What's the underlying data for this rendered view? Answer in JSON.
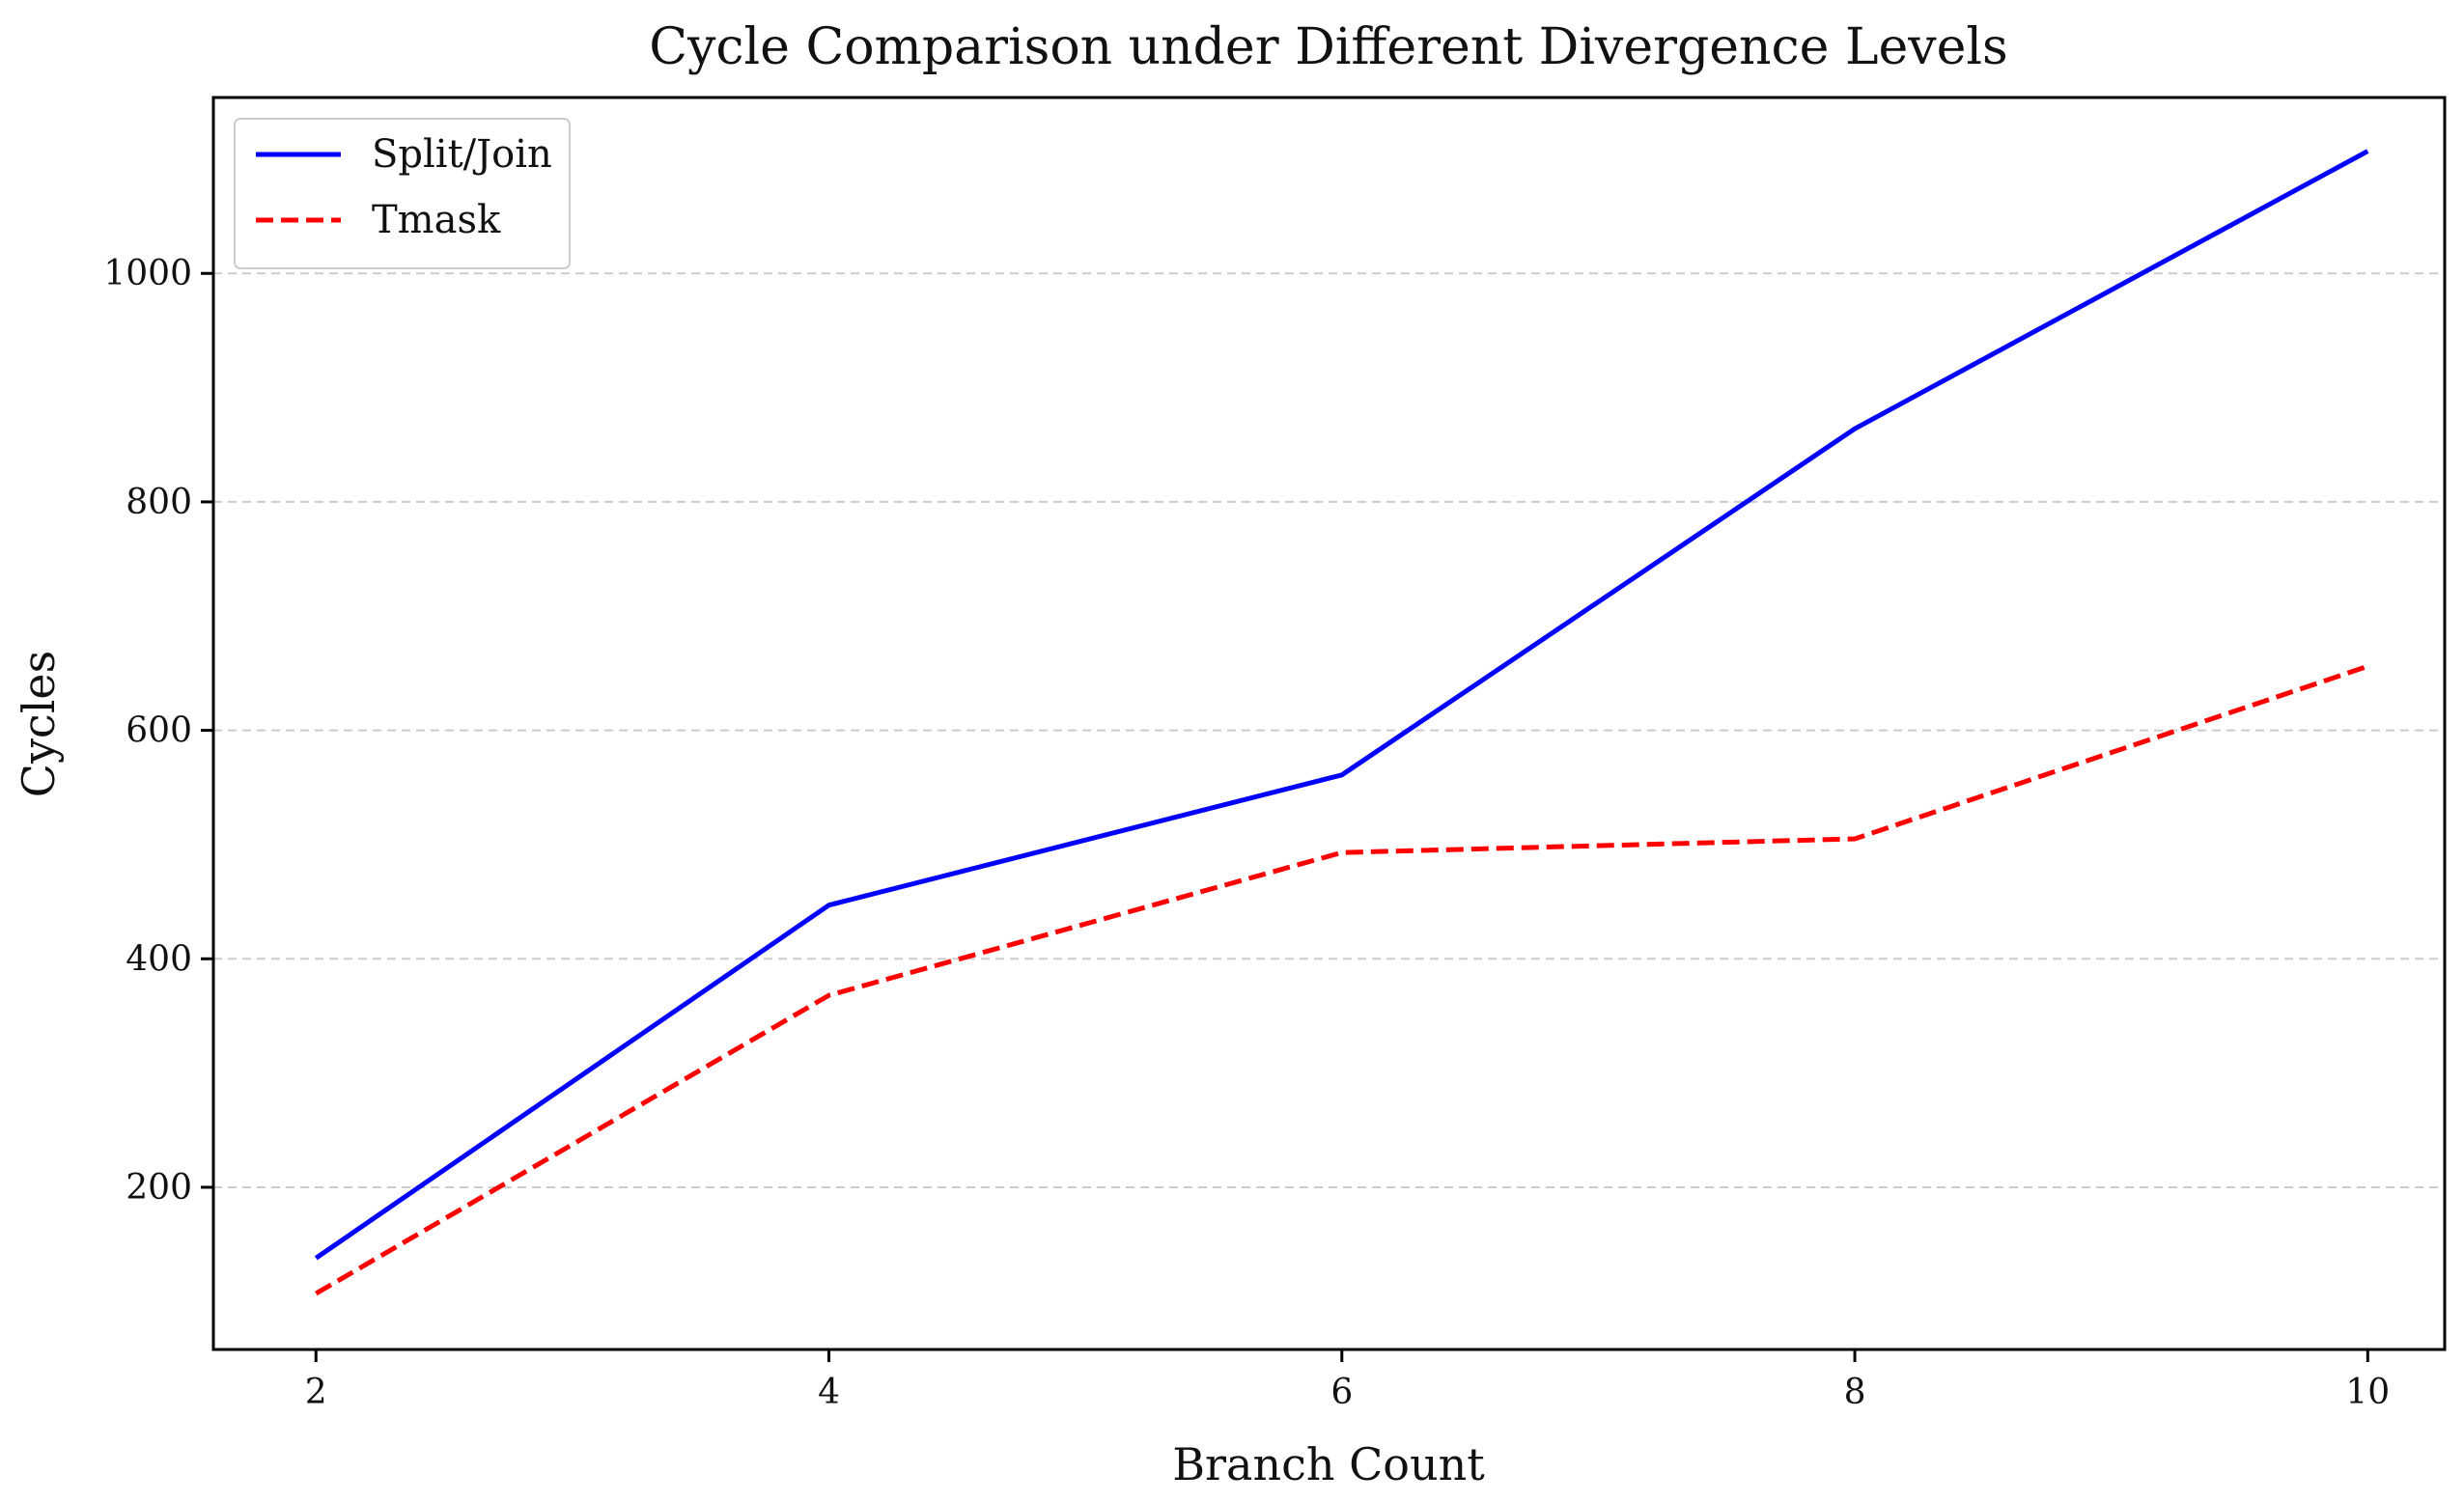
{
  "chart_data": {
    "type": "line",
    "title": "Cycle Comparison under Different Divergence Levels",
    "xlabel": "Branch Count",
    "ylabel": "Cycles",
    "x": [
      2,
      4,
      6,
      8,
      10
    ],
    "xlim": [
      1.6,
      10.3
    ],
    "ylim": [
      58,
      1154
    ],
    "xticks": [
      2,
      4,
      6,
      8,
      10
    ],
    "yticks": [
      200,
      400,
      600,
      800,
      1000
    ],
    "grid": {
      "axis": "y",
      "style": "dashed",
      "color": "#cccccc"
    },
    "legend_position": "top-left",
    "series": [
      {
        "name": "Split/Join",
        "values": [
          138,
          447,
          561,
          864,
          1107
        ],
        "color": "#0000ff",
        "style": "solid"
      },
      {
        "name": "Tmask",
        "values": [
          107,
          368,
          493,
          505,
          656
        ],
        "color": "#ff0000",
        "style": "dashed"
      }
    ]
  }
}
